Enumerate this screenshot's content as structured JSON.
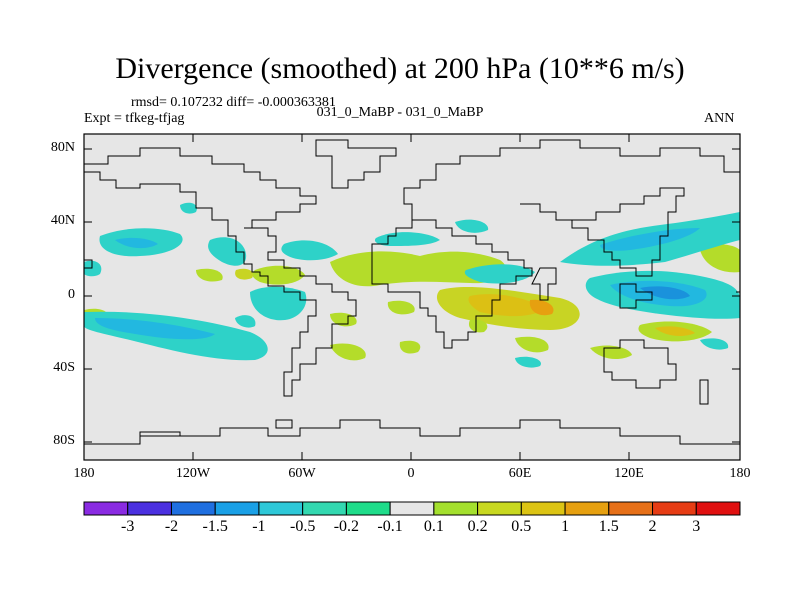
{
  "header": {
    "title": "Divergence (smoothed) at 200 hPa (10**6 m/s)",
    "stats": "rmsd= 0.107232 diff= -0.000363381",
    "experiment_pair": "031_0_MaBP - 031_0_MaBP",
    "expt": "Expt = tfkeg-tfjag",
    "season": "ANN"
  },
  "axes": {
    "y_ticks": [
      "80N",
      "40N",
      "0",
      "40S",
      "80S"
    ],
    "x_ticks": [
      "180",
      "120W",
      "60W",
      "0",
      "60E",
      "120E",
      "180"
    ]
  },
  "colorbar": {
    "labels": [
      "-3",
      "-2",
      "-1.5",
      "-1",
      "-0.5",
      "-0.2",
      "-0.1",
      "0.1",
      "0.2",
      "0.5",
      "1",
      "1.5",
      "2",
      "3"
    ],
    "colors": [
      "#8a2be2",
      "#4b30e0",
      "#1f6fe0",
      "#1aa0e6",
      "#2ec8d8",
      "#33d8b0",
      "#1fdc8a",
      "#e6e6e6",
      "#a4e02e",
      "#c8d820",
      "#dcc414",
      "#e6a010",
      "#e67018",
      "#e63c14",
      "#e01010"
    ]
  }
}
